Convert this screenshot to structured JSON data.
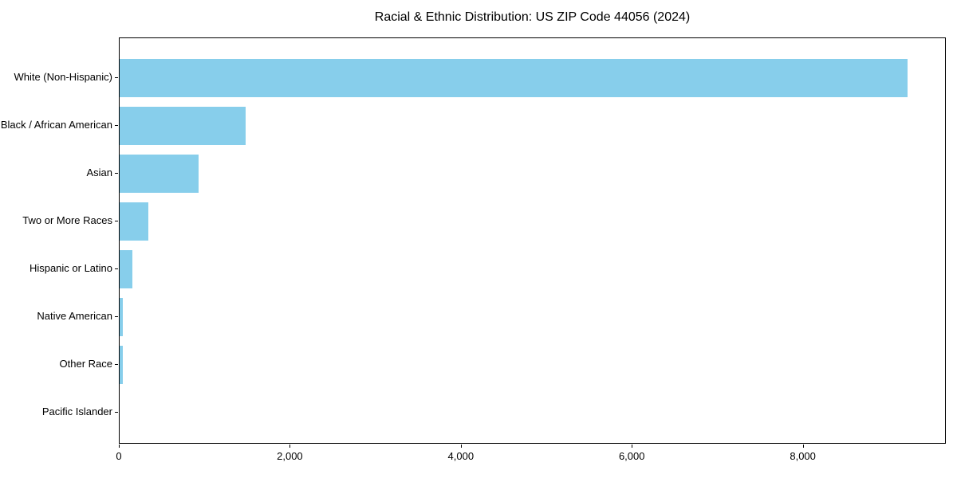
{
  "page": {
    "background_color": "#ffffff"
  },
  "chart_data": {
    "type": "bar",
    "orientation": "horizontal",
    "title": "Racial & Ethnic Distribution: US ZIP Code 44056 (2024)",
    "categories": [
      "White (Non-Hispanic)",
      "Black / African American",
      "Asian",
      "Two or More Races",
      "Hispanic or Latino",
      "Native American",
      "Other Race",
      "Pacific Islander"
    ],
    "values": [
      9212,
      1477,
      926,
      336,
      149,
      38,
      36,
      0
    ],
    "xlabel": "",
    "ylabel": "",
    "xlim": [
      0,
      9673
    ],
    "x_ticks": [
      0,
      2000,
      4000,
      6000,
      8000
    ],
    "x_tick_labels": [
      "0",
      "2,000",
      "4,000",
      "6,000",
      "8,000"
    ],
    "bar_color": "#87CEEB",
    "axis_color": "#000000",
    "text_color": "#000000",
    "grid": false,
    "legend": null
  }
}
